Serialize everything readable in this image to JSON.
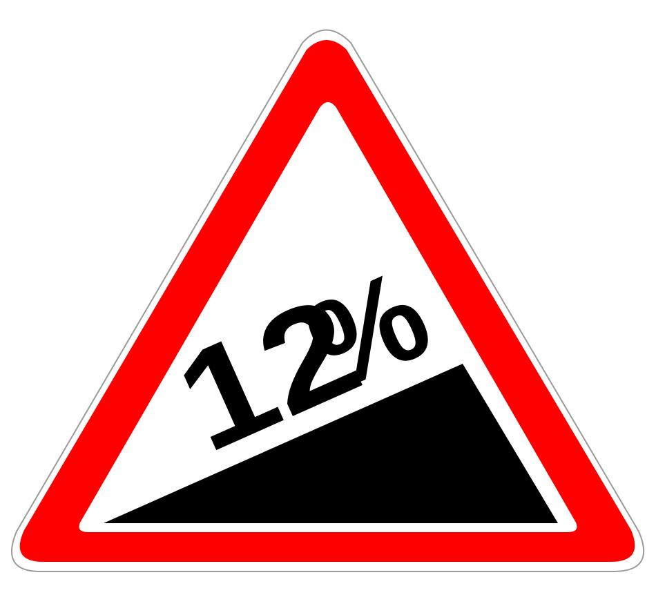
{
  "sign": {
    "number": "12",
    "percent": "%",
    "colors": {
      "border_red": "#ff0000",
      "field_white": "#ffffff",
      "slope_black": "#000000",
      "outline_gray": "#9a9a9a"
    }
  }
}
